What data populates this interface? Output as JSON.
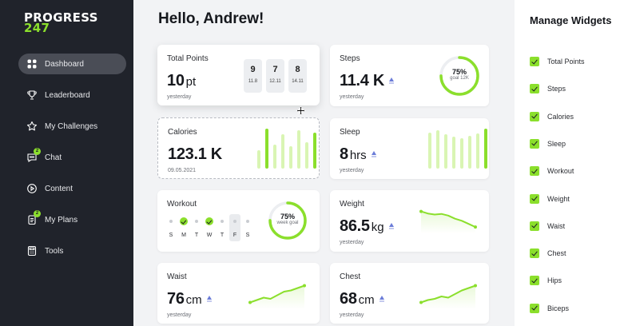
{
  "brand": {
    "line1": "PROGRESS",
    "line2": "247",
    "accent": "#8bdf2c"
  },
  "sidebar": {
    "items": [
      {
        "label": "Dashboard",
        "icon": "grid-icon",
        "active": true
      },
      {
        "label": "Leaderboard",
        "icon": "trophy-icon"
      },
      {
        "label": "My Challenges",
        "icon": "star-icon"
      },
      {
        "label": "Chat",
        "icon": "chat-icon",
        "badge": "2"
      },
      {
        "label": "Content",
        "icon": "play-icon"
      },
      {
        "label": "My Plans",
        "icon": "plans-icon",
        "badge": "2"
      },
      {
        "label": "Tools",
        "icon": "calculator-icon"
      }
    ]
  },
  "greeting": "Hello, Andrew!",
  "cards": {
    "total_points": {
      "title": "Total Points",
      "value": "10",
      "unit": "pt",
      "sub": "yesterday",
      "dates": [
        {
          "day": "9",
          "month": "11.8"
        },
        {
          "day": "7",
          "month": "12.11"
        },
        {
          "day": "8",
          "month": "14.11"
        }
      ]
    },
    "steps": {
      "title": "Steps",
      "value": "11.4 K",
      "sub": "yesterday",
      "ring_pct": "75%",
      "ring_label": "goal 12K",
      "progress": 0.75
    },
    "calories": {
      "title": "Calories",
      "value": "123.1 K",
      "sub": "09.05.2021",
      "bars": [
        0.45,
        1.0,
        0.6,
        0.85,
        0.55,
        0.95,
        0.65,
        0.9
      ]
    },
    "sleep": {
      "title": "Sleep",
      "value": "8",
      "unit": "hrs",
      "sub": "yesterday",
      "bars": [
        0.9,
        0.95,
        0.85,
        0.8,
        0.75,
        0.82,
        0.88,
        1.0
      ]
    },
    "workout": {
      "title": "Workout",
      "ring_pct": "75%",
      "ring_label": "week goal",
      "progress": 0.75,
      "days": [
        {
          "label": "S",
          "done": false
        },
        {
          "label": "M",
          "done": true
        },
        {
          "label": "T",
          "done": false
        },
        {
          "label": "W",
          "done": true
        },
        {
          "label": "T",
          "done": false
        },
        {
          "label": "F",
          "done": false,
          "today": true
        },
        {
          "label": "S",
          "done": false
        }
      ]
    },
    "weight": {
      "title": "Weight",
      "value": "86.5",
      "unit": "kg",
      "sub": "yesterday",
      "trend": [
        0.9,
        0.8,
        0.75,
        0.78,
        0.7,
        0.55,
        0.45,
        0.3,
        0.15
      ]
    },
    "waist": {
      "title": "Waist",
      "value": "76",
      "unit": "cm",
      "sub": "yesterday",
      "trend": [
        0.15,
        0.25,
        0.35,
        0.3,
        0.45,
        0.6,
        0.65,
        0.75,
        0.85
      ]
    },
    "chest": {
      "title": "Chest",
      "value": "68",
      "unit": "cm",
      "sub": "yesterday",
      "trend": [
        0.15,
        0.25,
        0.3,
        0.4,
        0.35,
        0.5,
        0.65,
        0.75,
        0.85
      ]
    }
  },
  "manage": {
    "title": "Manage Widgets",
    "items": [
      "Total Points",
      "Steps",
      "Calories",
      "Sleep",
      "Workout",
      "Weight",
      "Waist",
      "Chest",
      "Hips",
      "Biceps"
    ]
  }
}
